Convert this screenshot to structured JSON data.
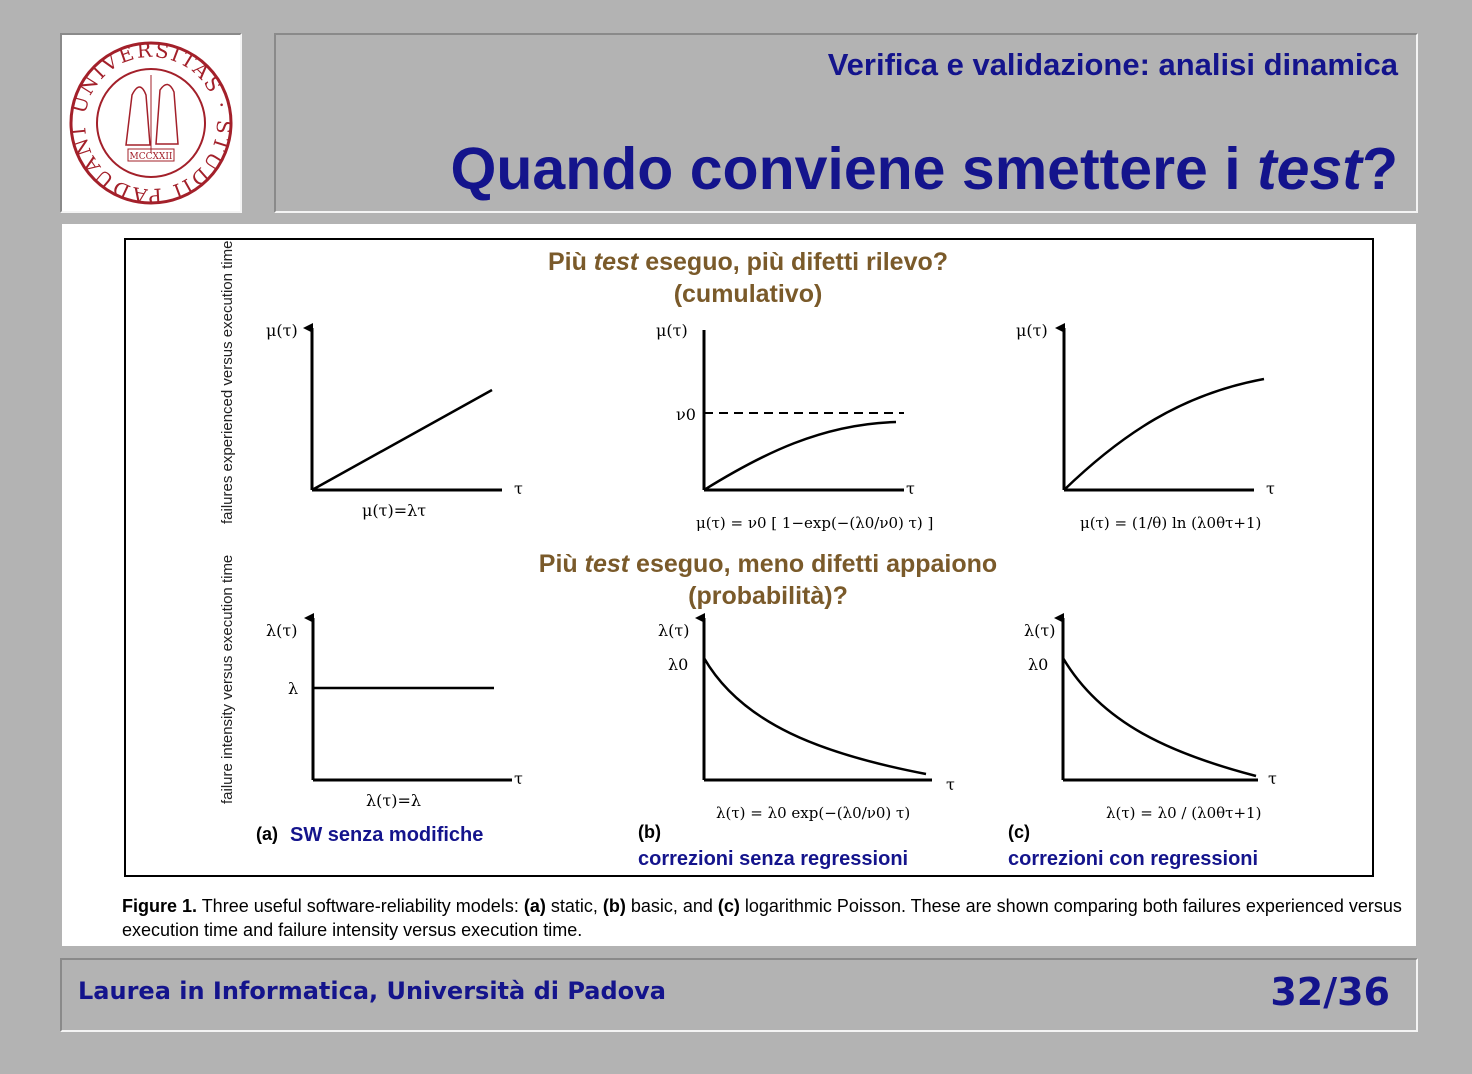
{
  "header": {
    "subtitle": "Verifica e validazione: analisi dinamica",
    "title_main": "Quando conviene smettere i ",
    "title_italic": "test",
    "title_end": "?"
  },
  "seal": {
    "text": "UNIVERSITAS · STUDII PADUANI",
    "year": "MCCXXII"
  },
  "figure": {
    "top_note": {
      "prefix": "Più ",
      "italic": "test",
      "suffix": " eseguo, più difetti rilevo?",
      "line2": "(cumulativo)"
    },
    "bottom_note": {
      "prefix": "Più ",
      "italic": "test",
      "suffix": " eseguo, meno difetti appaiono",
      "line2": "(probabilità)?"
    },
    "vlabel_top": "failures experienced versus execution time",
    "vlabel_bottom": "failure intensity versus execution time",
    "axis": {
      "mu": "μ(τ)",
      "lambda": "λ(τ)",
      "tau": "τ",
      "nu0": "ν0",
      "lambda_const": "λ",
      "lambda0": "λ0"
    },
    "formulas": {
      "a_top": "μ(τ)=λτ",
      "b_top": "μ(τ) = ν0 [ 1−exp(−(λ0/ν0) τ) ]",
      "c_top": "μ(τ) = (1/θ) ln (λ0θτ+1)",
      "a_bottom": "λ(τ)=λ",
      "b_bottom": "λ(τ) = λ0 exp(−(λ0/ν0) τ)",
      "c_bottom": "λ(τ) = λ0 / (λ0θτ+1)"
    },
    "tags": {
      "a": "(a)",
      "b": "(b)",
      "c": "(c)"
    },
    "model_labels": {
      "a": "SW senza modifiche",
      "b": "correzioni senza regressioni",
      "c": "correzioni con regressioni"
    },
    "caption": {
      "figure_label": "Figure 1.",
      "text1": " Three useful software-reliability models: ",
      "a": "(a)",
      "t2": " static, ",
      "b": "(b)",
      "t3": " basic, and ",
      "c": "(c)",
      "t4": " logarithmic Poisson. These are shown comparing both failures experienced versus execution time and failure intensity versus execution time."
    }
  },
  "footer": {
    "left": "Laurea in Informatica, Università di Padova",
    "page": "32/36"
  }
}
